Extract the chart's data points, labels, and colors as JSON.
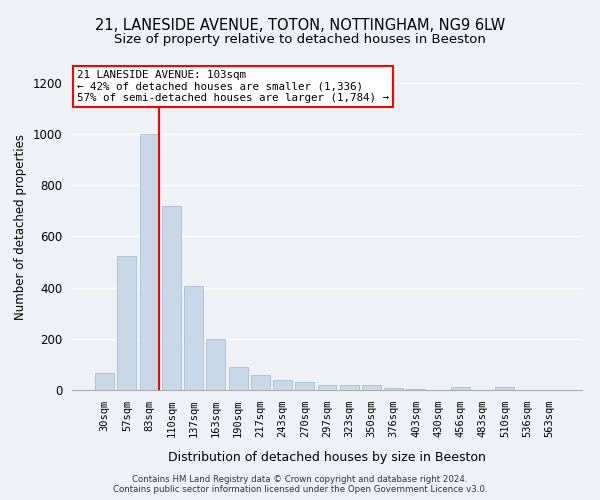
{
  "title1": "21, LANESIDE AVENUE, TOTON, NOTTINGHAM, NG9 6LW",
  "title2": "Size of property relative to detached houses in Beeston",
  "xlabel": "Distribution of detached houses by size in Beeston",
  "ylabel": "Number of detached properties",
  "categories": [
    "30sqm",
    "57sqm",
    "83sqm",
    "110sqm",
    "137sqm",
    "163sqm",
    "190sqm",
    "217sqm",
    "243sqm",
    "270sqm",
    "297sqm",
    "323sqm",
    "350sqm",
    "376sqm",
    "403sqm",
    "430sqm",
    "456sqm",
    "483sqm",
    "510sqm",
    "536sqm",
    "563sqm"
  ],
  "values": [
    65,
    525,
    1000,
    720,
    405,
    198,
    90,
    60,
    40,
    33,
    18,
    20,
    18,
    8,
    5,
    0,
    10,
    0,
    10,
    0,
    0
  ],
  "bar_color": "#c8d8e8",
  "bar_edge_color": "#a0b8d0",
  "bar_width": 0.85,
  "annotation_text1": "21 LANESIDE AVENUE: 103sqm",
  "annotation_text2": "← 42% of detached houses are smaller (1,336)",
  "annotation_text3": "57% of semi-detached houses are larger (1,784) →",
  "annotation_box_color": "white",
  "annotation_box_edge": "red",
  "red_line_color": "red",
  "ylim": [
    0,
    1270
  ],
  "yticks": [
    0,
    200,
    400,
    600,
    800,
    1000,
    1200
  ],
  "footer1": "Contains HM Land Registry data © Crown copyright and database right 2024.",
  "footer2": "Contains public sector information licensed under the Open Government Licence v3.0.",
  "background_color": "#eef2f7",
  "grid_color": "white",
  "title_fontsize": 10.5,
  "subtitle_fontsize": 9.5
}
